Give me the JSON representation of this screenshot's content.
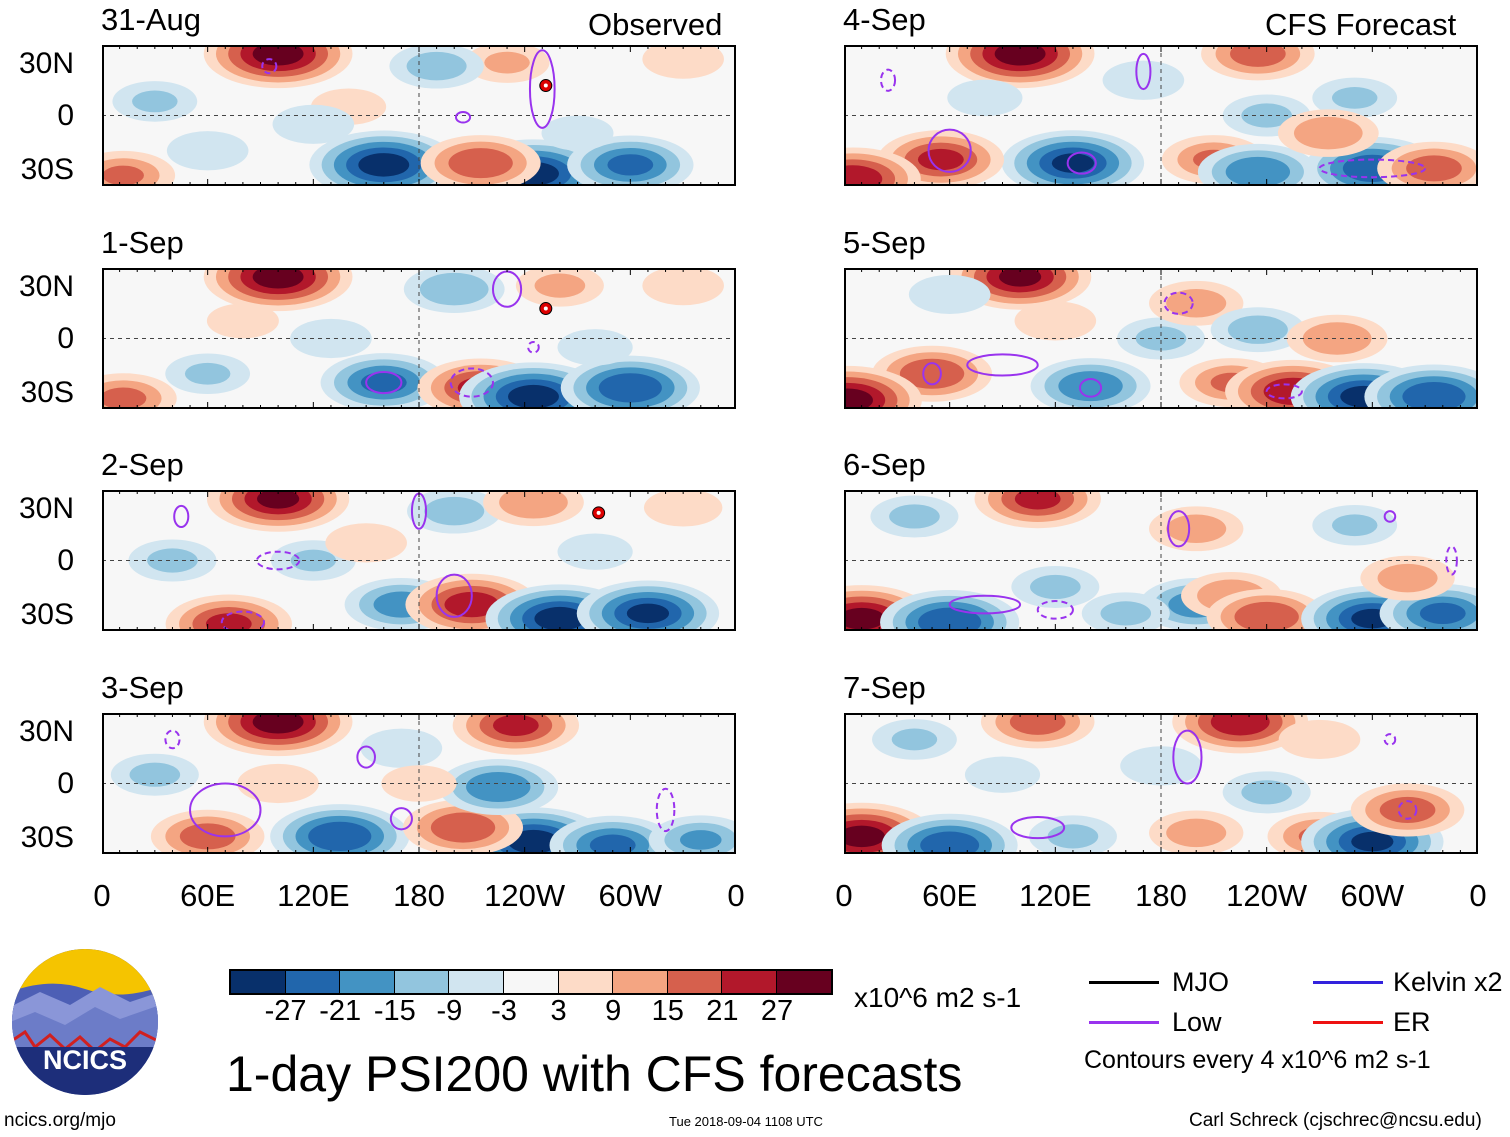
{
  "header": {
    "left_label": "Observed",
    "right_label": "CFS Forecast"
  },
  "lat_labels": [
    "30N",
    "0",
    "30S"
  ],
  "lon_labels": [
    "0",
    "60E",
    "120E",
    "180",
    "120W",
    "60W",
    "0"
  ],
  "panels": [
    {
      "date": "31-Aug",
      "blobs": [
        [
          100,
          35,
          29
        ],
        [
          160,
          -28,
          -29
        ],
        [
          245,
          -33,
          -29
        ],
        [
          300,
          -28,
          -22
        ],
        [
          215,
          -27,
          20
        ],
        [
          12,
          -34,
          15
        ],
        [
          30,
          8,
          -9
        ],
        [
          230,
          30,
          9
        ],
        [
          140,
          5,
          6
        ],
        [
          60,
          -20,
          -8
        ],
        [
          190,
          28,
          -12
        ],
        [
          330,
          32,
          8
        ],
        [
          270,
          -10,
          -5
        ],
        [
          120,
          -5,
          -8
        ]
      ],
      "lows": [
        [
          250,
          15,
          7,
          22
        ],
        [
          95,
          28,
          4,
          4
        ],
        [
          205,
          -1,
          4,
          3
        ]
      ],
      "storm": [
        [
          252,
          17
        ]
      ]
    },
    {
      "date": "1-Sep",
      "blobs": [
        [
          100,
          35,
          29
        ],
        [
          160,
          -25,
          -22
        ],
        [
          215,
          -28,
          22
        ],
        [
          245,
          -33,
          -29
        ],
        [
          300,
          -28,
          -26
        ],
        [
          12,
          -34,
          16
        ],
        [
          200,
          28,
          -14
        ],
        [
          260,
          30,
          10
        ],
        [
          60,
          -20,
          -9
        ],
        [
          130,
          0,
          -8
        ],
        [
          330,
          30,
          8
        ],
        [
          280,
          -5,
          -6
        ],
        [
          80,
          10,
          5
        ]
      ],
      "lows": [
        [
          230,
          28,
          8,
          10
        ],
        [
          210,
          -25,
          12,
          8
        ],
        [
          160,
          -25,
          10,
          6
        ],
        [
          245,
          -5,
          3,
          3
        ]
      ],
      "storm": [
        [
          252,
          17
        ]
      ]
    },
    {
      "date": "2-Sep",
      "blobs": [
        [
          100,
          35,
          27
        ],
        [
          170,
          -25,
          -18
        ],
        [
          210,
          -25,
          24
        ],
        [
          260,
          -33,
          -29
        ],
        [
          310,
          -30,
          -27
        ],
        [
          72,
          -36,
          22
        ],
        [
          200,
          28,
          -12
        ],
        [
          245,
          33,
          14
        ],
        [
          120,
          0,
          -9
        ],
        [
          40,
          0,
          -10
        ],
        [
          330,
          30,
          7
        ],
        [
          150,
          10,
          8
        ],
        [
          280,
          5,
          -6
        ]
      ],
      "lows": [
        [
          45,
          25,
          4,
          6
        ],
        [
          100,
          0,
          12,
          5
        ],
        [
          200,
          -20,
          10,
          12
        ],
        [
          80,
          -35,
          12,
          6
        ],
        [
          180,
          28,
          4,
          10
        ]
      ],
      "storm": [
        [
          282,
          27
        ]
      ]
    },
    {
      "date": "3-Sep",
      "blobs": [
        [
          100,
          35,
          29
        ],
        [
          135,
          -30,
          -26
        ],
        [
          245,
          -33,
          -29
        ],
        [
          290,
          -35,
          -22
        ],
        [
          60,
          -30,
          18
        ],
        [
          205,
          -25,
          20
        ],
        [
          235,
          33,
          22
        ],
        [
          225,
          -2,
          -20
        ],
        [
          170,
          20,
          -8
        ],
        [
          30,
          5,
          -10
        ],
        [
          340,
          -32,
          -15
        ],
        [
          100,
          0,
          8
        ],
        [
          180,
          0,
          6
        ]
      ],
      "lows": [
        [
          70,
          -15,
          20,
          15
        ],
        [
          40,
          25,
          4,
          5
        ],
        [
          170,
          -20,
          6,
          6
        ],
        [
          320,
          -15,
          5,
          12
        ],
        [
          150,
          15,
          5,
          6
        ]
      ],
      "storm": []
    },
    {
      "date": "4-Sep",
      "blobs": [
        [
          100,
          35,
          29
        ],
        [
          130,
          -27,
          -27
        ],
        [
          55,
          -25,
          22
        ],
        [
          5,
          -36,
          25
        ],
        [
          210,
          -25,
          15
        ],
        [
          235,
          -32,
          -20
        ],
        [
          300,
          -30,
          -25
        ],
        [
          335,
          -30,
          18
        ],
        [
          235,
          35,
          18
        ],
        [
          170,
          20,
          -8
        ],
        [
          240,
          0,
          -10
        ],
        [
          290,
          10,
          -9
        ],
        [
          275,
          -10,
          14
        ],
        [
          80,
          10,
          -6
        ]
      ],
      "lows": [
        [
          60,
          -20,
          12,
          12
        ],
        [
          25,
          20,
          4,
          6
        ],
        [
          135,
          -27,
          8,
          6
        ],
        [
          300,
          -30,
          30,
          5
        ],
        [
          170,
          25,
          4,
          10
        ]
      ],
      "storm": []
    },
    {
      "date": "5-Sep",
      "blobs": [
        [
          100,
          35,
          27
        ],
        [
          50,
          -20,
          20
        ],
        [
          2,
          -35,
          29
        ],
        [
          140,
          -27,
          -20
        ],
        [
          220,
          -25,
          15
        ],
        [
          255,
          -30,
          25
        ],
        [
          295,
          -33,
          -28
        ],
        [
          335,
          -33,
          -26
        ],
        [
          180,
          0,
          -10
        ],
        [
          200,
          20,
          12
        ],
        [
          235,
          5,
          -12
        ],
        [
          60,
          25,
          -8
        ],
        [
          280,
          0,
          14
        ],
        [
          120,
          10,
          8
        ]
      ],
      "lows": [
        [
          50,
          -20,
          5,
          6
        ],
        [
          190,
          20,
          8,
          6
        ],
        [
          140,
          -28,
          6,
          5
        ],
        [
          250,
          -30,
          10,
          4
        ],
        [
          90,
          -15,
          20,
          6
        ]
      ],
      "storm": []
    },
    {
      "date": "6-Sep",
      "blobs": [
        [
          110,
          35,
          22
        ],
        [
          10,
          -33,
          28
        ],
        [
          60,
          -35,
          -26
        ],
        [
          120,
          -15,
          -10
        ],
        [
          200,
          -25,
          -18
        ],
        [
          220,
          -20,
          14
        ],
        [
          240,
          -32,
          20
        ],
        [
          300,
          -33,
          -27
        ],
        [
          340,
          -30,
          -22
        ],
        [
          200,
          18,
          12
        ],
        [
          290,
          20,
          -9
        ],
        [
          40,
          25,
          -10
        ],
        [
          320,
          -10,
          12
        ],
        [
          160,
          -30,
          -10
        ]
      ],
      "lows": [
        [
          190,
          18,
          6,
          10
        ],
        [
          120,
          -28,
          10,
          5
        ],
        [
          310,
          25,
          3,
          3
        ],
        [
          345,
          0,
          3,
          8
        ],
        [
          80,
          -25,
          20,
          5
        ]
      ],
      "storm": []
    },
    {
      "date": "7-Sep",
      "blobs": [
        [
          110,
          35,
          18
        ],
        [
          10,
          -30,
          28
        ],
        [
          60,
          -35,
          -25
        ],
        [
          225,
          35,
          25
        ],
        [
          180,
          10,
          -8
        ],
        [
          240,
          -5,
          -10
        ],
        [
          270,
          -30,
          15
        ],
        [
          300,
          -33,
          -27
        ],
        [
          320,
          -15,
          18
        ],
        [
          130,
          -30,
          -10
        ],
        [
          200,
          -28,
          12
        ],
        [
          40,
          25,
          -9
        ],
        [
          270,
          25,
          8
        ],
        [
          90,
          5,
          -6
        ]
      ],
      "lows": [
        [
          195,
          15,
          8,
          15
        ],
        [
          320,
          -15,
          5,
          5
        ],
        [
          110,
          -25,
          15,
          6
        ],
        [
          310,
          25,
          3,
          3
        ]
      ],
      "storm": []
    }
  ],
  "colorbar": {
    "colors": [
      "#08306b",
      "#2166ac",
      "#4393c3",
      "#92c5de",
      "#d1e5f0",
      "#f7f7f7",
      "#fddbc7",
      "#f4a582",
      "#d6604d",
      "#b2182b",
      "#67001f"
    ],
    "labels": [
      "-27",
      "-21",
      "-15",
      "-9",
      "-3",
      "3",
      "9",
      "15",
      "21",
      "27"
    ],
    "units": "x10^6 m2 s-1"
  },
  "title": "1-day PSI200 with CFS forecasts",
  "legend": {
    "items": [
      {
        "label": "MJO",
        "color": "#000000"
      },
      {
        "label": "Kelvin x2",
        "color": "#3322dd"
      },
      {
        "label": "Low",
        "color": "#9933ee"
      },
      {
        "label": "ER",
        "color": "#ee1111"
      }
    ],
    "contours_note": "Contours every 4 x10^6 m2 s-1"
  },
  "logo": {
    "text": "NCICS"
  },
  "footer": {
    "url": "ncics.org/mjo",
    "timestamp": "Tue 2018-09-04 1108 UTC",
    "credit": "Carl Schreck (cjschrec@ncsu.edu)"
  }
}
